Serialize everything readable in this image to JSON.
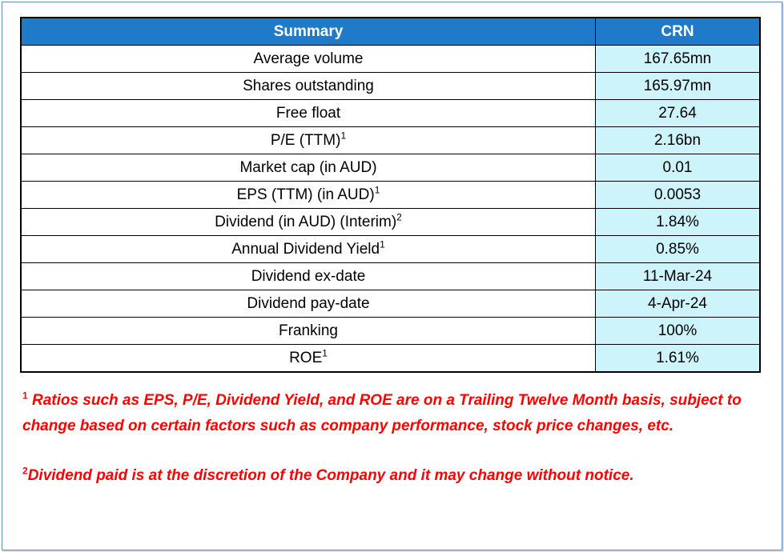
{
  "table": {
    "header": [
      "Summary",
      "CRN"
    ],
    "rows": [
      {
        "label": "Average volume",
        "sup": "",
        "value": "167.65mn"
      },
      {
        "label": "Shares outstanding",
        "sup": "",
        "value": "165.97mn"
      },
      {
        "label": "Free float",
        "sup": "",
        "value": "27.64"
      },
      {
        "label": "P/E (TTM)",
        "sup": "1",
        "value": "2.16bn"
      },
      {
        "label": "Market cap (in AUD)",
        "sup": "",
        "value": "0.01"
      },
      {
        "label": "EPS (TTM) (in AUD)",
        "sup": "1",
        "value": "0.0053"
      },
      {
        "label": "Dividend (in AUD) (Interim)",
        "sup": "2",
        "value": "1.84%"
      },
      {
        "label": "Annual Dividend Yield",
        "sup": "1",
        "value": "0.85%"
      },
      {
        "label": "Dividend ex-date",
        "sup": "",
        "value": "11-Mar-24"
      },
      {
        "label": "Dividend pay-date",
        "sup": "",
        "value": "4-Apr-24"
      },
      {
        "label": "Franking",
        "sup": "",
        "value": "100%"
      },
      {
        "label": "ROE",
        "sup": "1",
        "value": "1.61%"
      }
    ]
  },
  "footnotes": [
    {
      "marker": "1",
      "text": " Ratios such as EPS, P/E, Dividend Yield, and ROE are on a Trailing Twelve Month basis, subject to change based on certain factors such as company performance, stock price changes, etc."
    },
    {
      "marker": "2",
      "text": "Dividend paid is at the discretion of the Company and it may change without notice."
    }
  ],
  "colors": {
    "header_bg": "#1f7ac9",
    "value_bg": "#cdf3fb",
    "footnote": "#ff0000"
  }
}
